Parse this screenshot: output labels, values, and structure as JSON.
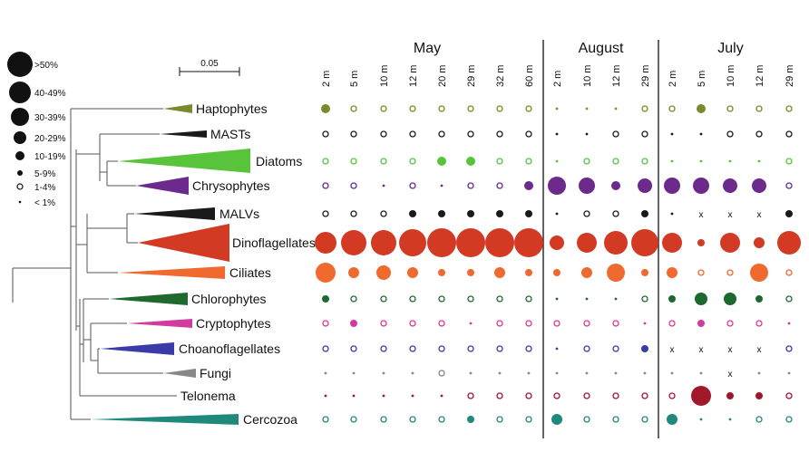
{
  "legend": {
    "items": [
      {
        "label": ">50%",
        "kind": "filled",
        "r": 14
      },
      {
        "label": "40-49%",
        "kind": "filled",
        "r": 12
      },
      {
        "label": "30-39%",
        "kind": "filled",
        "r": 10
      },
      {
        "label": "20-29%",
        "kind": "filled",
        "r": 7
      },
      {
        "label": "10-19%",
        "kind": "filled",
        "r": 5
      },
      {
        "label": "5-9%",
        "kind": "filled",
        "r": 3
      },
      {
        "label": "1-4%",
        "kind": "open",
        "r": 3
      },
      {
        "label": "< 1%",
        "kind": "tiny",
        "r": 1.3
      }
    ]
  },
  "scale_bar": {
    "label": "0.05"
  },
  "groups": [
    {
      "label": "May",
      "depths": [
        "2 m",
        "5 m",
        "10 m",
        "12 m",
        "20 m",
        "29 m",
        "32 m",
        "60 m"
      ]
    },
    {
      "label": "August",
      "depths": [
        "2 m",
        "10 m",
        "12 m",
        "29 m"
      ]
    },
    {
      "label": "July",
      "depths": [
        "2 m",
        "5 m",
        "10 m",
        "12 m",
        "29 m"
      ]
    }
  ],
  "taxa": [
    {
      "label": "Haptophytes",
      "color": "#7a8a2c",
      "cells": [
        "s:5",
        "o:3",
        "o:3",
        "o:3",
        "o:3",
        "o:3",
        "o:3",
        "o:3",
        "t",
        "t",
        "t",
        "o:3",
        "o:3",
        "s:5",
        "o:3",
        "o:3",
        "o:3"
      ]
    },
    {
      "label": "MASTs",
      "color": "#1a1a1a",
      "cells": [
        "o:3",
        "o:3",
        "o:3",
        "o:3",
        "o:3",
        "o:3",
        "o:3",
        "o:3",
        "t",
        "t",
        "o:3",
        "o:3",
        "t",
        "t",
        "o:3",
        "o:3",
        "o:3"
      ]
    },
    {
      "label": "Diatoms",
      "color": "#58c43c",
      "cells": [
        "o:3",
        "o:3",
        "o:3",
        "o:3",
        "s:5",
        "s:5",
        "o:3",
        "o:3",
        "t",
        "o:3",
        "o:3",
        "o:3",
        "t",
        "t",
        "t",
        "t",
        "o:3"
      ]
    },
    {
      "label": "Chrysophytes",
      "color": "#6b2a8c",
      "cells": [
        "o:3",
        "o:3",
        "t",
        "o:3",
        "t",
        "o:3",
        "o:3",
        "s:5",
        "f:10",
        "f:9",
        "s:5",
        "f:8",
        "f:9",
        "f:9",
        "f:8",
        "f:8",
        "o:3"
      ]
    },
    {
      "label": "MALVs",
      "color": "#1a1a1a",
      "cells": [
        "o:3",
        "o:3",
        "o:3",
        "s:4",
        "s:4",
        "s:4",
        "s:4",
        "s:4",
        "t",
        "o:3",
        "o:3",
        "s:4",
        "t",
        "x",
        "x",
        "x",
        "s:4"
      ]
    },
    {
      "label": "Dinoflagellates",
      "color": "#d23a24",
      "cells": [
        "f:12",
        "f:14",
        "f:14",
        "f:15",
        "f:16",
        "f:16",
        "f:16",
        "f:16",
        "f:8",
        "f:11",
        "f:13",
        "f:15",
        "f:11",
        "s:4",
        "f:11",
        "f:6",
        "f:13"
      ]
    },
    {
      "label": "Ciliates",
      "color": "#f06a30",
      "cells": [
        "f:11",
        "f:6",
        "f:8",
        "f:6",
        "s:4",
        "s:4",
        "f:6",
        "s:4",
        "s:4",
        "f:6",
        "f:10",
        "s:4",
        "f:6",
        "o:3",
        "o:3",
        "f:10",
        "o:3"
      ]
    },
    {
      "label": "Chlorophytes",
      "color": "#1e6a2e",
      "cells": [
        "s:4",
        "o:3",
        "o:3",
        "o:3",
        "o:3",
        "o:3",
        "o:3",
        "o:3",
        "t",
        "t",
        "t",
        "o:3",
        "s:4",
        "f:7",
        "f:7",
        "s:4",
        "o:3"
      ]
    },
    {
      "label": "Cryptophytes",
      "color": "#d23aa0",
      "cells": [
        "o:3",
        "s:4",
        "o:3",
        "o:3",
        "o:3",
        "t",
        "o:3",
        "o:3",
        "o:3",
        "o:3",
        "o:3",
        "t",
        "o:3",
        "s:4",
        "o:3",
        "o:3",
        "t"
      ]
    },
    {
      "label": "Choanoflagellates",
      "color": "#3a3aa8",
      "cells": [
        "o:3",
        "o:3",
        "o:3",
        "o:3",
        "o:3",
        "o:3",
        "o:3",
        "o:3",
        "t",
        "o:3",
        "o:3",
        "s:4",
        "x",
        "x",
        "x",
        "x",
        "o:3"
      ]
    },
    {
      "label": "Fungi",
      "color": "#888888",
      "cells": [
        "t",
        "t",
        "t",
        "t",
        "o:3",
        "t",
        "t",
        "t",
        "t",
        "t",
        "t",
        "t",
        "t",
        "t",
        "x",
        "t",
        "t"
      ]
    },
    {
      "label": "Telonema",
      "color": "#a0182a",
      "cells": [
        "t",
        "t",
        "t",
        "t",
        "t",
        "o:3",
        "o:3",
        "o:3",
        "o:3",
        "o:3",
        "o:3",
        "o:3",
        "o:3",
        "f:11",
        "s:4",
        "s:4",
        "o:3"
      ]
    },
    {
      "label": "Cercozoa",
      "color": "#1f8a7c",
      "cells": [
        "o:3",
        "o:3",
        "o:3",
        "o:3",
        "o:3",
        "s:4",
        "o:3",
        "o:3",
        "f:6",
        "o:3",
        "o:3",
        "o:3",
        "f:6",
        "t",
        "t",
        "o:3",
        "o:3"
      ]
    }
  ]
}
